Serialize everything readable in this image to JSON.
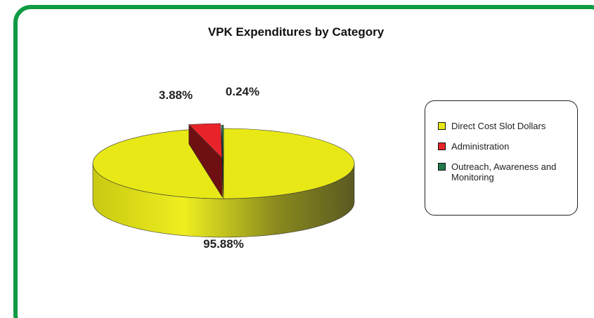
{
  "chart_data": {
    "type": "pie",
    "title": "VPK Expenditures by Category",
    "categories": [
      "Direct Cost Slot Dollars",
      "Administration",
      "Outreach, Awareness and Monitoring"
    ],
    "values": [
      95.88,
      3.88,
      0.24
    ],
    "value_labels": [
      "95.88%",
      "3.88%",
      "0.24%"
    ],
    "colors": [
      "#e8e817",
      "#e8232a",
      "#1f7a4a"
    ],
    "legend": "right"
  }
}
